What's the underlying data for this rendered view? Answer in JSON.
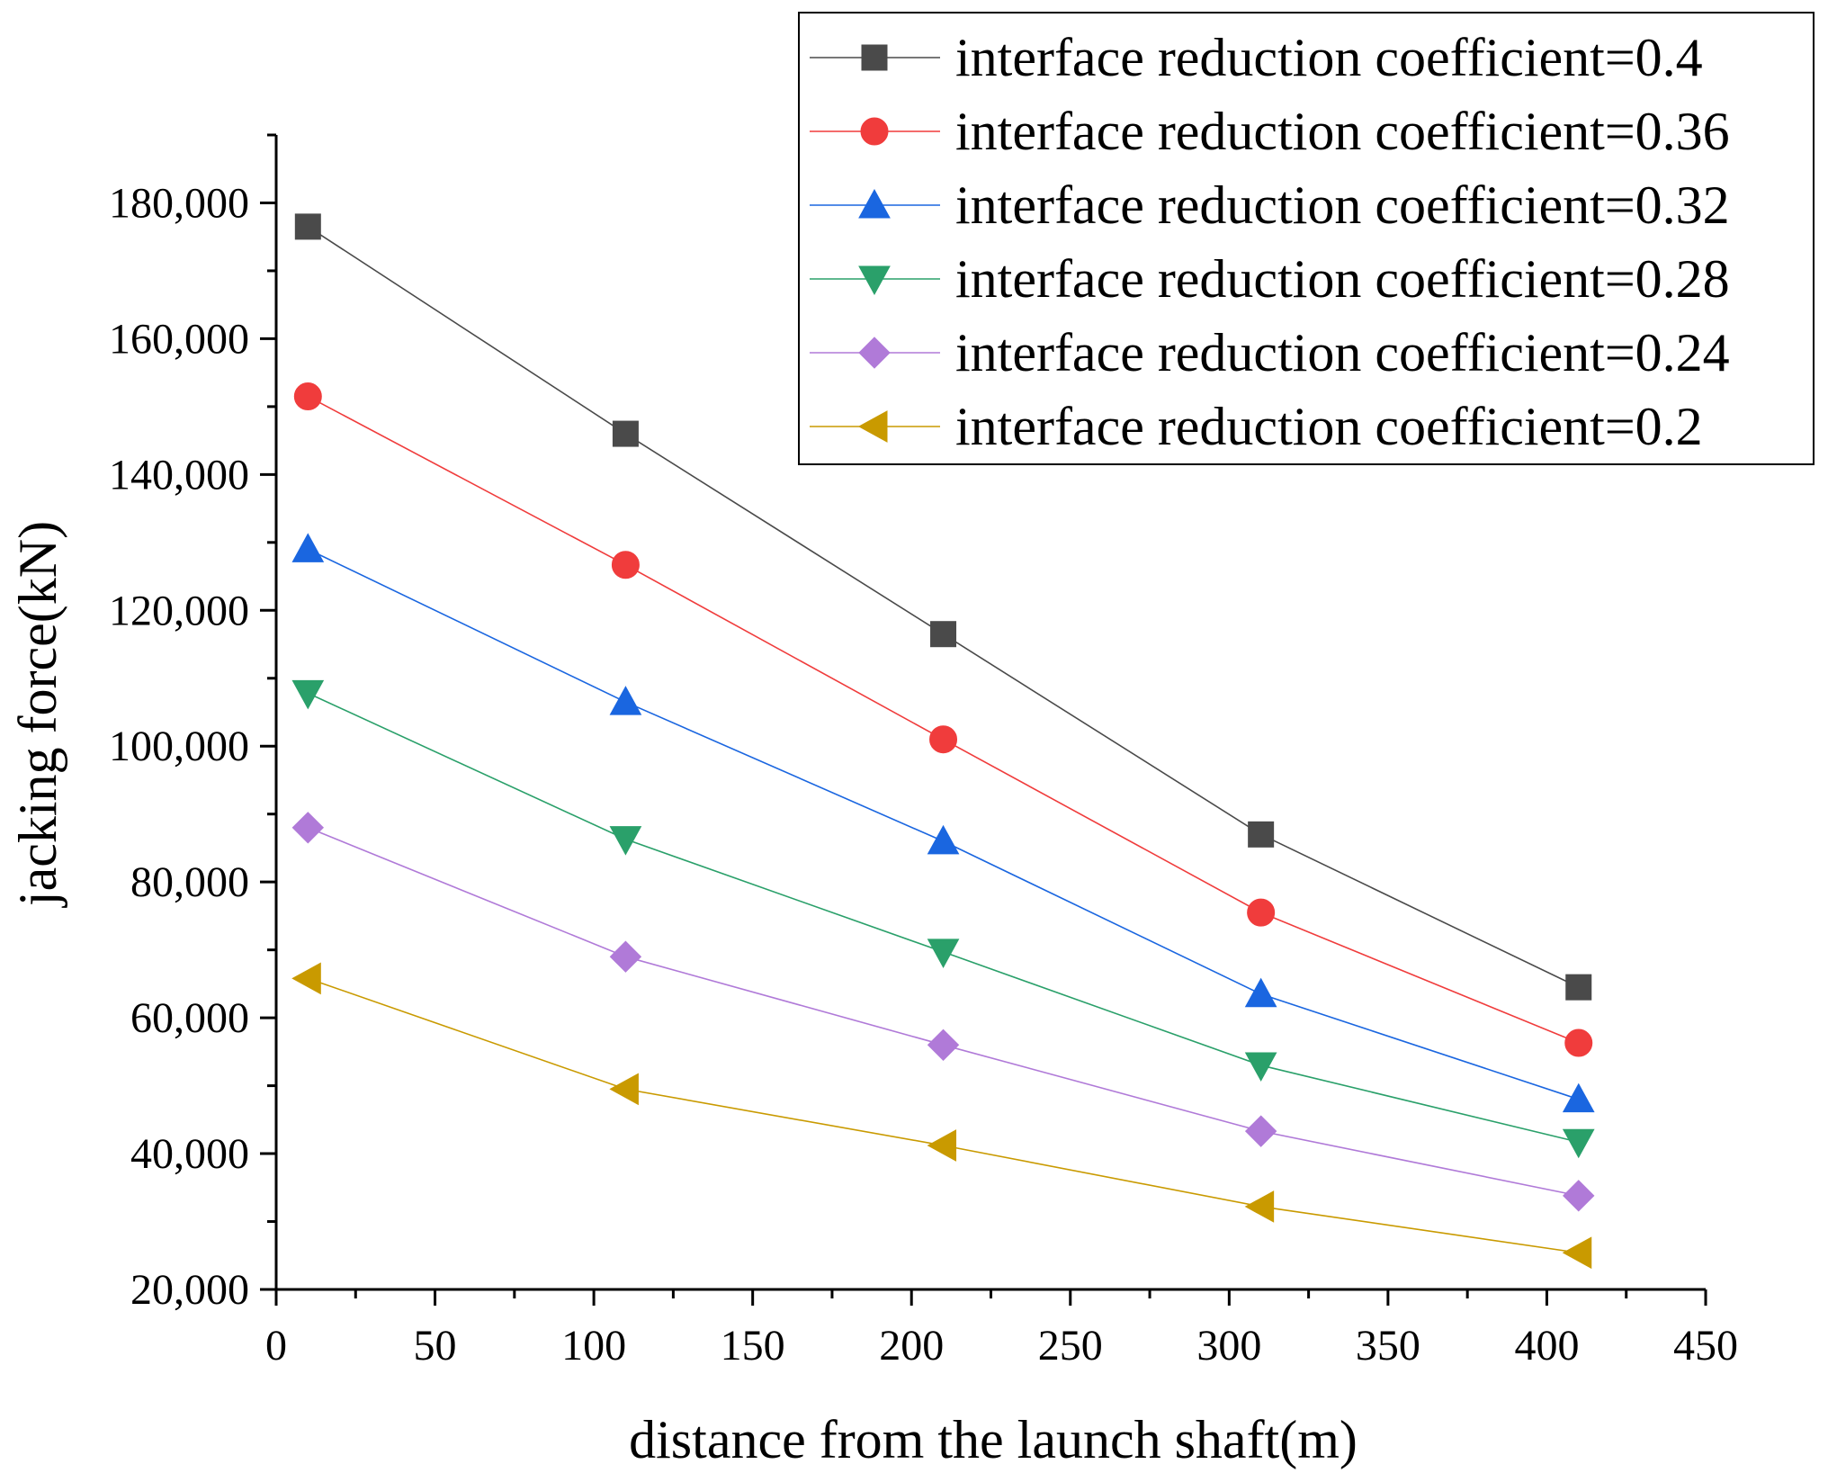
{
  "chart_data": {
    "type": "line",
    "title": "",
    "xlabel": "distance from the launch shaft(m)",
    "ylabel": "jacking force(kN)",
    "xlim": [
      0,
      450
    ],
    "ylim": [
      20000,
      190000
    ],
    "x_ticks": [
      0,
      50,
      100,
      150,
      200,
      250,
      300,
      350,
      400,
      450
    ],
    "x_tick_labels": [
      "0",
      "50",
      "100",
      "150",
      "200",
      "250",
      "300",
      "350",
      "400",
      "450"
    ],
    "y_ticks": [
      20000,
      40000,
      60000,
      80000,
      100000,
      120000,
      140000,
      160000,
      180000
    ],
    "y_tick_labels": [
      "20,000",
      "40,000",
      "60,000",
      "80,000",
      "100,000",
      "120,000",
      "140,000",
      "160,000",
      "180,000"
    ],
    "grid": false,
    "legend_position": "top-right",
    "x": [
      10,
      110,
      210,
      310,
      410
    ],
    "series": [
      {
        "name": "interface reduction coefficient=0.4",
        "color": "#4a4a4a",
        "marker": "square",
        "values": [
          176500,
          146000,
          116500,
          87000,
          64500
        ]
      },
      {
        "name": "interface reduction coefficient=0.36",
        "color": "#f03c3c",
        "marker": "circle",
        "values": [
          151500,
          126700,
          101000,
          75500,
          56300
        ]
      },
      {
        "name": "interface reduction coefficient=0.32",
        "color": "#1a66e0",
        "marker": "triangle-up",
        "values": [
          129000,
          106500,
          86000,
          63500,
          48000
        ]
      },
      {
        "name": "interface reduction coefficient=0.28",
        "color": "#2aa06a",
        "marker": "triangle-down",
        "values": [
          107800,
          86300,
          69700,
          53000,
          41700
        ]
      },
      {
        "name": "interface reduction coefficient=0.24",
        "color": "#b07ad8",
        "marker": "diamond",
        "values": [
          88000,
          69000,
          56000,
          43300,
          33800
        ]
      },
      {
        "name": "interface reduction coefficient=0.2",
        "color": "#c99a00",
        "marker": "triangle-left",
        "values": [
          65800,
          49500,
          41200,
          32200,
          25400
        ]
      }
    ]
  }
}
